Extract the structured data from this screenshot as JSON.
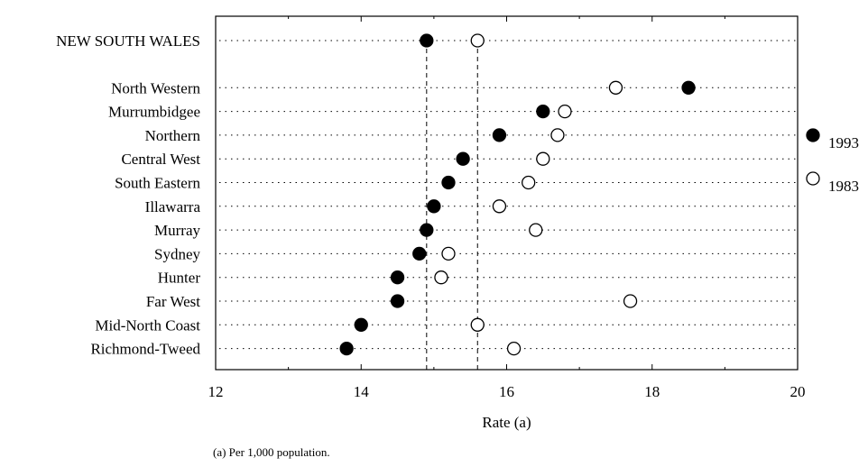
{
  "chart_data": {
    "type": "scatter",
    "xlabel": "Rate (a)",
    "xlim": [
      12,
      20
    ],
    "xticks": [
      12,
      14,
      16,
      18,
      20
    ],
    "categories": [
      "NEW SOUTH WALES",
      "North Western",
      "Murrumbidgee",
      "Northern",
      "Central West",
      "South Eastern",
      "Illawarra",
      "Murray",
      "Sydney",
      "Hunter",
      "Far West",
      "Mid-North Coast",
      "Richmond-Tweed"
    ],
    "series": [
      {
        "name": "1993",
        "marker": "filled",
        "values": [
          14.9,
          18.5,
          16.5,
          15.9,
          15.4,
          15.2,
          15.0,
          14.9,
          14.8,
          14.5,
          14.5,
          14.0,
          13.8
        ]
      },
      {
        "name": "1983",
        "marker": "hollow",
        "values": [
          15.6,
          17.5,
          16.8,
          16.7,
          16.5,
          16.3,
          15.9,
          16.4,
          15.2,
          15.1,
          17.7,
          15.6,
          16.1
        ]
      }
    ],
    "reference_lines": [
      14.9,
      15.6
    ],
    "grid": true,
    "legend": "right"
  },
  "footnote": "(a) Per 1,000 population."
}
